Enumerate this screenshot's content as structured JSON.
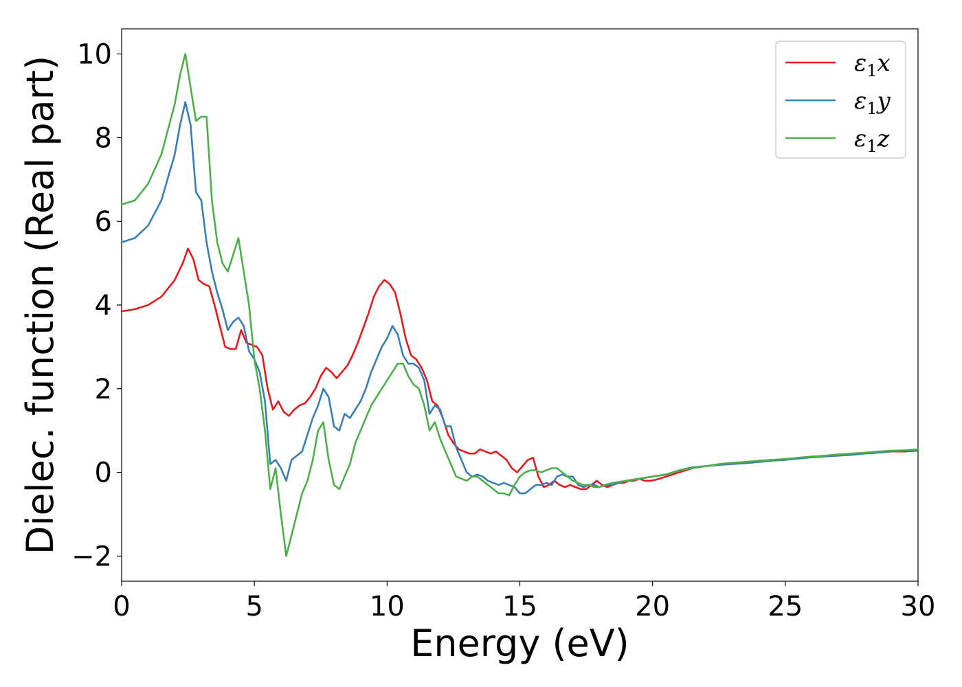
{
  "chart_data": {
    "type": "line",
    "title": "",
    "xlabel": "Energy (eV)",
    "ylabel": "Dielec. function (Real part)",
    "xlim": [
      0,
      30
    ],
    "ylim": [
      -2.6,
      10.6
    ],
    "xticks": [
      0,
      5,
      10,
      15,
      20,
      25,
      30
    ],
    "xtick_labels": [
      "0",
      "5",
      "10",
      "15",
      "20",
      "25",
      "30"
    ],
    "yticks": [
      -2,
      0,
      2,
      4,
      6,
      8,
      10
    ],
    "ytick_labels": [
      "−2",
      "0",
      "2",
      "4",
      "6",
      "8",
      "10"
    ],
    "grid": false,
    "legend_position": "top-right",
    "series": [
      {
        "name": "ε1x",
        "legend_main": "ε",
        "legend_sub": "1",
        "legend_suffix": "x",
        "color": "#e41a1c",
        "x": [
          0,
          0.5,
          1,
          1.5,
          2,
          2.3,
          2.5,
          2.7,
          2.9,
          3.1,
          3.3,
          3.5,
          3.7,
          3.9,
          4.1,
          4.3,
          4.5,
          4.7,
          4.9,
          5.1,
          5.3,
          5.5,
          5.7,
          5.9,
          6.1,
          6.3,
          6.5,
          6.7,
          6.9,
          7.1,
          7.3,
          7.5,
          7.7,
          7.9,
          8.1,
          8.3,
          8.5,
          8.7,
          8.9,
          9.1,
          9.3,
          9.5,
          9.7,
          9.9,
          10.1,
          10.3,
          10.5,
          10.7,
          10.9,
          11.1,
          11.3,
          11.5,
          11.7,
          11.9,
          12.1,
          12.3,
          12.5,
          12.7,
          12.9,
          13.1,
          13.3,
          13.5,
          13.7,
          13.9,
          14.1,
          14.3,
          14.5,
          14.7,
          14.9,
          15.1,
          15.3,
          15.5,
          15.7,
          15.9,
          16.1,
          16.3,
          16.5,
          16.7,
          16.9,
          17.1,
          17.3,
          17.5,
          17.7,
          17.9,
          18.1,
          18.3,
          18.5,
          18.7,
          18.9,
          19.1,
          19.3,
          19.5,
          19.7,
          19.9,
          20.1,
          20.5,
          21,
          21.5,
          22,
          22.5,
          23,
          23.5,
          24,
          24.5,
          25,
          25.5,
          26,
          26.5,
          27,
          27.5,
          28,
          28.5,
          29,
          29.5,
          30
        ],
        "values": [
          3.85,
          3.9,
          4.0,
          4.2,
          4.6,
          5.0,
          5.35,
          5.1,
          4.6,
          4.5,
          4.45,
          4.0,
          3.5,
          3.0,
          2.95,
          2.95,
          3.4,
          3.1,
          3.05,
          3.0,
          2.8,
          2.0,
          1.5,
          1.7,
          1.45,
          1.35,
          1.5,
          1.6,
          1.65,
          1.8,
          2.0,
          2.3,
          2.5,
          2.4,
          2.25,
          2.4,
          2.55,
          2.8,
          3.1,
          3.45,
          3.8,
          4.2,
          4.45,
          4.6,
          4.5,
          4.3,
          3.8,
          3.2,
          2.8,
          2.7,
          2.5,
          2.2,
          1.7,
          1.6,
          1.3,
          0.9,
          0.7,
          0.55,
          0.5,
          0.45,
          0.45,
          0.55,
          0.5,
          0.45,
          0.5,
          0.4,
          0.3,
          0.1,
          0.0,
          0.15,
          0.3,
          0.35,
          -0.1,
          -0.35,
          -0.3,
          -0.2,
          -0.3,
          -0.35,
          -0.3,
          -0.35,
          -0.4,
          -0.4,
          -0.3,
          -0.2,
          -0.3,
          -0.35,
          -0.3,
          -0.25,
          -0.25,
          -0.2,
          -0.2,
          -0.15,
          -0.2,
          -0.2,
          -0.18,
          -0.1,
          0.0,
          0.1,
          0.15,
          0.18,
          0.22,
          0.25,
          0.27,
          0.3,
          0.3,
          0.35,
          0.37,
          0.4,
          0.42,
          0.45,
          0.47,
          0.48,
          0.5,
          0.5,
          0.52
        ]
      },
      {
        "name": "ε1y",
        "legend_main": "ε",
        "legend_sub": "1",
        "legend_suffix": "y",
        "color": "#377eb8",
        "x": [
          0,
          0.5,
          1,
          1.5,
          2,
          2.2,
          2.4,
          2.6,
          2.8,
          3.0,
          3.2,
          3.4,
          3.6,
          3.8,
          4.0,
          4.2,
          4.4,
          4.6,
          4.8,
          5.0,
          5.2,
          5.4,
          5.6,
          5.8,
          6.0,
          6.2,
          6.4,
          6.6,
          6.8,
          7.0,
          7.2,
          7.4,
          7.6,
          7.8,
          8.0,
          8.2,
          8.4,
          8.6,
          8.8,
          9.0,
          9.2,
          9.4,
          9.6,
          9.8,
          10.0,
          10.2,
          10.4,
          10.6,
          10.8,
          11.0,
          11.2,
          11.4,
          11.6,
          11.8,
          12.0,
          12.2,
          12.4,
          12.6,
          12.8,
          13.0,
          13.2,
          13.4,
          13.6,
          13.8,
          14.0,
          14.2,
          14.4,
          14.6,
          14.8,
          15.0,
          15.2,
          15.4,
          15.6,
          15.8,
          16.0,
          16.2,
          16.4,
          16.6,
          16.8,
          17.0,
          17.2,
          17.4,
          17.6,
          17.8,
          18.0,
          18.2,
          18.5,
          19,
          19.5,
          20,
          20.5,
          21,
          21.5,
          22,
          22.5,
          23,
          23.5,
          24,
          24.5,
          25,
          25.5,
          26,
          26.5,
          27,
          27.5,
          28,
          28.5,
          29,
          29.5,
          30
        ],
        "values": [
          5.5,
          5.6,
          5.9,
          6.5,
          7.6,
          8.3,
          8.85,
          8.3,
          6.7,
          6.5,
          5.5,
          4.8,
          4.3,
          3.9,
          3.4,
          3.6,
          3.7,
          3.5,
          2.9,
          2.7,
          2.4,
          1.7,
          0.2,
          0.3,
          0.1,
          -0.2,
          0.3,
          0.4,
          0.5,
          0.9,
          1.3,
          1.6,
          2.0,
          1.8,
          1.1,
          1.0,
          1.4,
          1.3,
          1.5,
          1.7,
          2.0,
          2.4,
          2.7,
          3.0,
          3.2,
          3.5,
          3.3,
          2.8,
          2.6,
          2.6,
          2.5,
          2.2,
          1.4,
          1.6,
          1.5,
          1.1,
          1.1,
          0.6,
          0.3,
          0.0,
          -0.1,
          -0.05,
          -0.1,
          -0.2,
          -0.25,
          -0.3,
          -0.25,
          -0.3,
          -0.35,
          -0.5,
          -0.5,
          -0.4,
          -0.3,
          -0.3,
          -0.25,
          -0.3,
          -0.1,
          -0.05,
          -0.1,
          -0.1,
          -0.3,
          -0.35,
          -0.3,
          -0.3,
          -0.35,
          -0.3,
          -0.3,
          -0.2,
          -0.15,
          -0.1,
          -0.05,
          0.05,
          0.12,
          0.15,
          0.18,
          0.2,
          0.22,
          0.25,
          0.28,
          0.3,
          0.33,
          0.36,
          0.38,
          0.4,
          0.42,
          0.45,
          0.47,
          0.5,
          0.52,
          0.53
        ]
      },
      {
        "name": "ε1z",
        "legend_main": "ε",
        "legend_sub": "1",
        "legend_suffix": "z",
        "color": "#4daf4a",
        "x": [
          0,
          0.5,
          1,
          1.5,
          2,
          2.2,
          2.4,
          2.6,
          2.8,
          3.0,
          3.2,
          3.4,
          3.6,
          3.8,
          4.0,
          4.2,
          4.4,
          4.6,
          4.8,
          5.0,
          5.2,
          5.4,
          5.6,
          5.8,
          6.0,
          6.2,
          6.4,
          6.6,
          6.8,
          7.0,
          7.2,
          7.4,
          7.6,
          7.8,
          8.0,
          8.2,
          8.4,
          8.6,
          8.8,
          9.0,
          9.2,
          9.4,
          9.6,
          9.8,
          10.0,
          10.2,
          10.4,
          10.6,
          10.8,
          11.0,
          11.2,
          11.4,
          11.6,
          11.8,
          12.0,
          12.2,
          12.4,
          12.6,
          12.8,
          13.0,
          13.2,
          13.4,
          13.6,
          13.8,
          14.0,
          14.2,
          14.4,
          14.6,
          14.8,
          15.0,
          15.2,
          15.4,
          15.6,
          15.8,
          16.0,
          16.2,
          16.4,
          16.6,
          16.8,
          17.0,
          17.2,
          17.4,
          17.6,
          17.8,
          18.0,
          18.2,
          18.5,
          19,
          19.5,
          20,
          20.5,
          21,
          21.5,
          22,
          22.5,
          23,
          23.5,
          24,
          24.5,
          25,
          25.5,
          26,
          26.5,
          27,
          27.5,
          28,
          28.5,
          29,
          29.5,
          30
        ],
        "values": [
          6.4,
          6.5,
          6.9,
          7.6,
          8.8,
          9.5,
          10.0,
          9.2,
          8.4,
          8.5,
          8.5,
          6.5,
          5.5,
          5.0,
          4.8,
          5.2,
          5.6,
          4.8,
          4.0,
          2.7,
          2.0,
          1.0,
          -0.4,
          0.1,
          -1.0,
          -2.0,
          -1.5,
          -1.0,
          -0.5,
          -0.2,
          0.3,
          1.0,
          1.2,
          0.3,
          -0.3,
          -0.4,
          -0.1,
          0.2,
          0.7,
          1.0,
          1.3,
          1.6,
          1.8,
          2.0,
          2.2,
          2.4,
          2.6,
          2.6,
          2.3,
          2.1,
          2.0,
          1.6,
          1.0,
          1.2,
          0.8,
          0.5,
          0.2,
          -0.1,
          -0.15,
          -0.2,
          -0.1,
          -0.1,
          -0.2,
          -0.3,
          -0.4,
          -0.5,
          -0.5,
          -0.55,
          -0.3,
          -0.1,
          0.0,
          0.05,
          0.05,
          0.0,
          0.05,
          0.1,
          0.1,
          0.0,
          -0.1,
          -0.2,
          -0.25,
          -0.3,
          -0.3,
          -0.35,
          -0.35,
          -0.3,
          -0.25,
          -0.2,
          -0.15,
          -0.1,
          -0.05,
          0.05,
          0.1,
          0.15,
          0.2,
          0.23,
          0.25,
          0.28,
          0.3,
          0.32,
          0.35,
          0.38,
          0.4,
          0.43,
          0.45,
          0.47,
          0.5,
          0.52,
          0.53,
          0.55
        ]
      }
    ]
  }
}
